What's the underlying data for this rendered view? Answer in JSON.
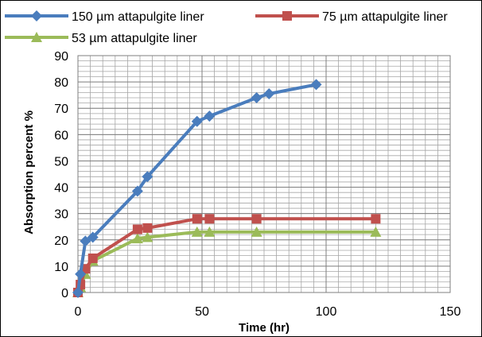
{
  "chart_data": {
    "type": "line",
    "title": "",
    "xlabel": "Time (hr)",
    "ylabel": "Absorption percent %",
    "xlim": [
      0,
      150
    ],
    "ylim": [
      0,
      90
    ],
    "xticks": [
      0,
      50,
      100,
      150
    ],
    "yticks": [
      0,
      10,
      20,
      30,
      40,
      50,
      60,
      70,
      80,
      90
    ],
    "grid": true,
    "legend_position": "top",
    "series": [
      {
        "name": "150 µm attapulgite liner",
        "color": "#4a7dbd",
        "marker": "diamond",
        "x": [
          0,
          1,
          3,
          6,
          24,
          28,
          48,
          53,
          72,
          77,
          96
        ],
        "y": [
          0,
          7,
          19.5,
          21,
          38.5,
          44,
          65,
          67,
          74,
          75.5,
          79
        ]
      },
      {
        "name": "75 µm attapulgite liner",
        "color": "#c0504d",
        "marker": "square",
        "x": [
          0,
          1,
          3,
          6,
          24,
          28,
          48,
          53,
          72,
          120
        ],
        "y": [
          0,
          3,
          9,
          13,
          24,
          24.5,
          28,
          28,
          28,
          28
        ]
      },
      {
        "name": "53 µm attapulgite liner",
        "color": "#9bbb59",
        "marker": "triangle",
        "x": [
          0,
          1,
          3,
          6,
          24,
          28,
          48,
          53,
          72,
          120
        ],
        "y": [
          0,
          2,
          7,
          12,
          20.5,
          21,
          23,
          23,
          23,
          23
        ]
      }
    ]
  }
}
